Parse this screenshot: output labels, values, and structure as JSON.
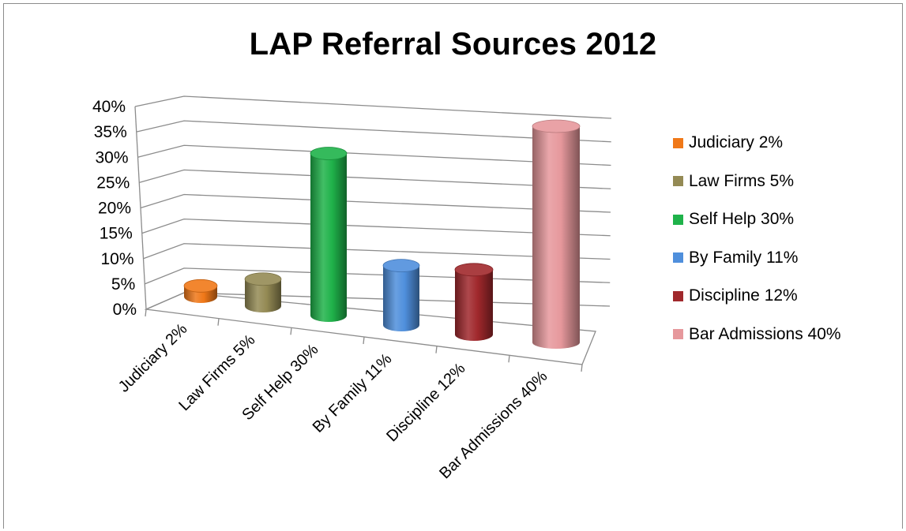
{
  "chart_data": {
    "type": "bar",
    "title": "LAP Referral Sources 2012",
    "categories": [
      "Judiciary  2%",
      "Law Firms 5%",
      "Self Help 30%",
      "By Family 11%",
      "Discipline 12%",
      "Bar Admissions 40%"
    ],
    "values": [
      2,
      5,
      30,
      11,
      12,
      40
    ],
    "colors": [
      "#f07818",
      "#948a54",
      "#1fb24a",
      "#4f8fdc",
      "#a0282c",
      "#e6989c"
    ],
    "ylim": [
      0,
      40
    ],
    "yticks": [
      "0%",
      "5%",
      "10%",
      "15%",
      "20%",
      "25%",
      "30%",
      "35%",
      "40%"
    ],
    "legend": [
      "Judiciary  2%",
      "Law Firms 5%",
      "Self Help 30%",
      "By Family 11%",
      "Discipline 12%",
      "Bar Admissions 40%"
    ],
    "legend_position": "right",
    "grid": true,
    "style": "3d-cylinder"
  }
}
